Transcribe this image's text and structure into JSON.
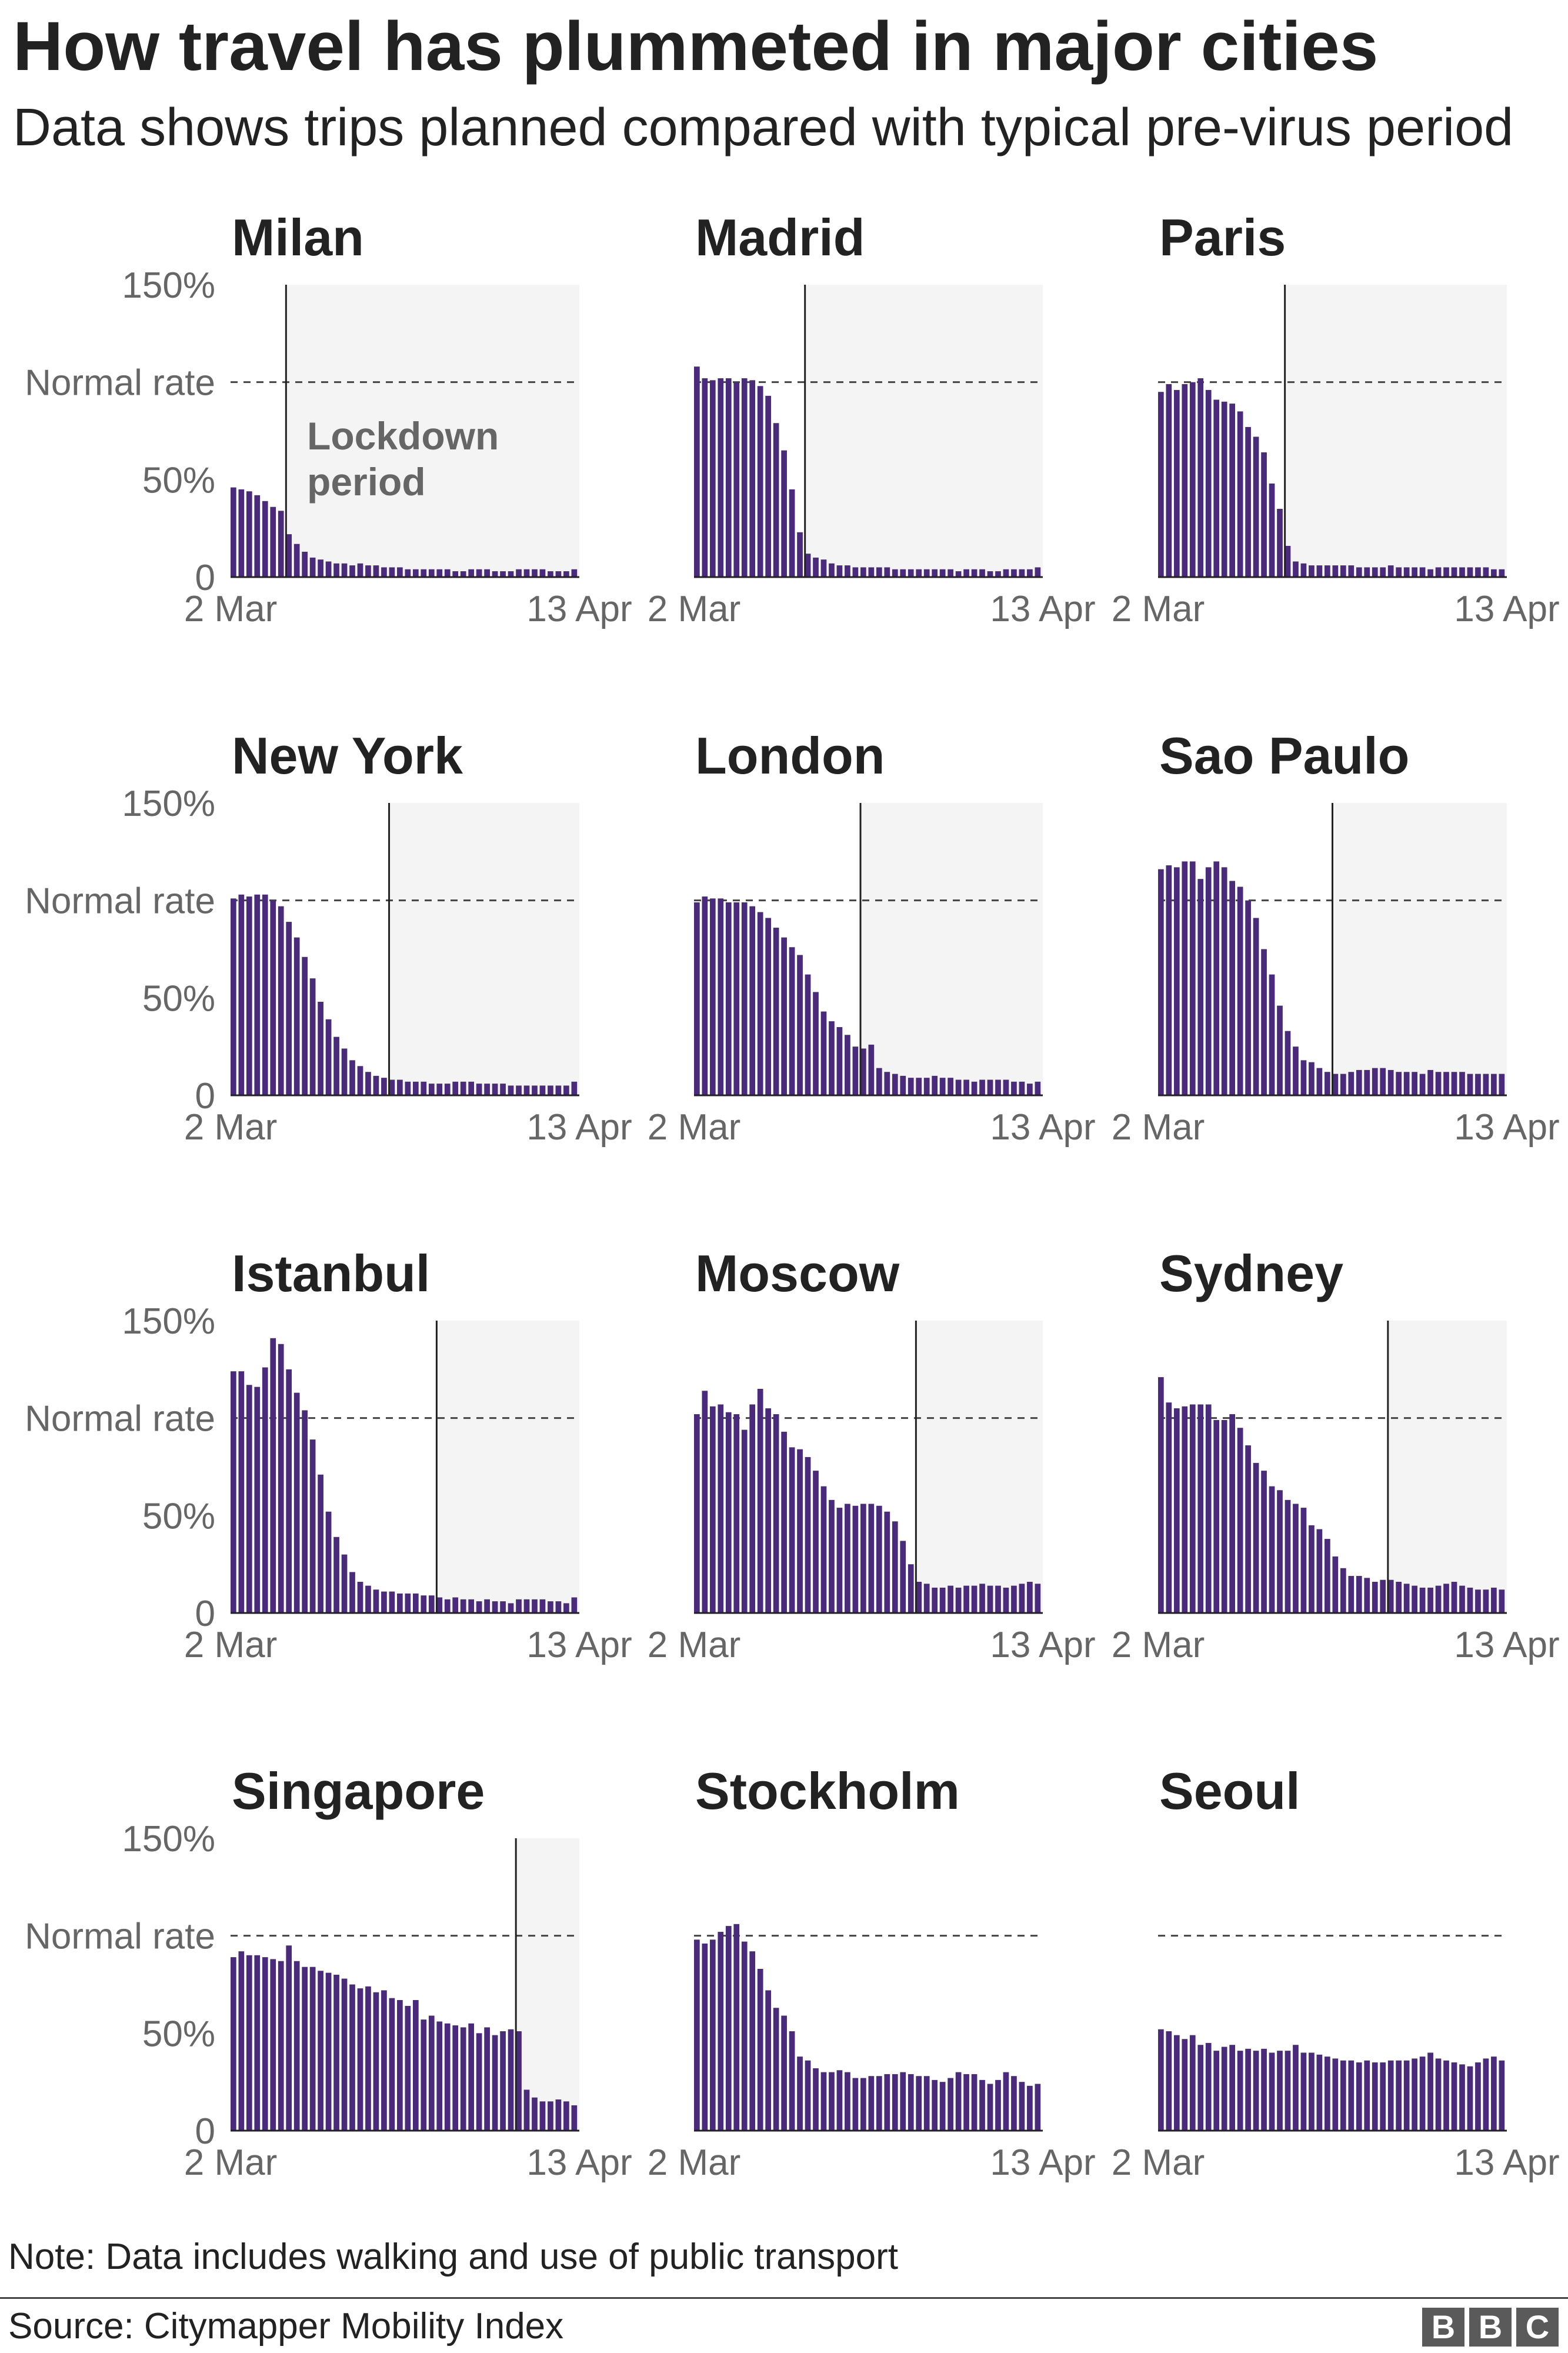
{
  "title": "How travel has plummeted in major cities",
  "subtitle": "Data shows trips planned compared with typical pre-virus period",
  "note": "Note: Data includes walking and use of public transport",
  "source": "Source: Citymapper Mobility Index",
  "logo": {
    "letters": [
      "B",
      "B",
      "C"
    ]
  },
  "colors": {
    "bar": "#4a2a7a",
    "lockdown_shade": "#f4f4f4",
    "axis": "#222222",
    "tick": "#666666",
    "annotation": "#666666"
  },
  "chart_data": {
    "type": "bar",
    "x_start_label": "2 Mar",
    "x_end_label": "13 Apr",
    "y_ticks": [
      {
        "value": 150,
        "label": "150%"
      },
      {
        "value": 100,
        "label": "Normal rate"
      },
      {
        "value": 50,
        "label": "50%"
      },
      {
        "value": 0,
        "label": "0"
      }
    ],
    "ylim": [
      0,
      150
    ],
    "reference_line": {
      "value": 100,
      "style": "dashed"
    },
    "annotation": {
      "chart": "Milan",
      "lines": [
        "Lockdown",
        "period"
      ]
    },
    "cities": [
      {
        "name": "Milan",
        "lockdown_day": 7,
        "values": [
          46,
          45,
          44,
          42,
          39,
          36,
          34,
          22,
          17,
          13,
          10,
          9,
          8,
          7,
          7,
          6,
          7,
          6,
          6,
          5,
          5,
          5,
          4,
          4,
          4,
          4,
          4,
          4,
          3,
          3,
          4,
          4,
          4,
          3,
          3,
          3,
          4,
          4,
          4,
          4,
          3,
          3,
          3,
          4
        ]
      },
      {
        "name": "Madrid",
        "lockdown_day": 14,
        "values": [
          108,
          102,
          101,
          102,
          102,
          100,
          102,
          101,
          98,
          93,
          79,
          65,
          45,
          23,
          12,
          10,
          9,
          7,
          6,
          6,
          5,
          5,
          5,
          5,
          5,
          4,
          4,
          4,
          4,
          4,
          4,
          4,
          4,
          3,
          4,
          4,
          4,
          3,
          3,
          4,
          4,
          4,
          4,
          5
        ]
      },
      {
        "name": "Paris",
        "lockdown_day": 16,
        "values": [
          95,
          99,
          96,
          99,
          100,
          102,
          96,
          91,
          90,
          89,
          85,
          77,
          72,
          64,
          48,
          35,
          16,
          8,
          7,
          6,
          6,
          6,
          6,
          6,
          6,
          5,
          5,
          5,
          5,
          6,
          5,
          5,
          5,
          5,
          4,
          5,
          5,
          5,
          5,
          5,
          5,
          5,
          4,
          4
        ]
      },
      {
        "name": "New York",
        "lockdown_day": 20,
        "values": [
          101,
          103,
          102,
          103,
          103,
          100,
          97,
          89,
          81,
          71,
          60,
          48,
          39,
          30,
          24,
          18,
          15,
          12,
          10,
          9,
          8,
          8,
          7,
          7,
          7,
          6,
          6,
          6,
          7,
          7,
          7,
          6,
          6,
          6,
          6,
          5,
          5,
          5,
          5,
          5,
          5,
          5,
          5,
          7
        ]
      },
      {
        "name": "London",
        "lockdown_day": 21,
        "values": [
          99,
          102,
          101,
          101,
          99,
          99,
          99,
          97,
          94,
          91,
          86,
          81,
          76,
          72,
          62,
          53,
          43,
          38,
          35,
          31,
          25,
          24,
          26,
          14,
          12,
          11,
          10,
          9,
          9,
          9,
          10,
          9,
          9,
          8,
          8,
          7,
          8,
          8,
          8,
          8,
          7,
          7,
          6,
          7
        ]
      },
      {
        "name": "Sao Paulo",
        "lockdown_day": 22,
        "values": [
          116,
          118,
          117,
          120,
          120,
          111,
          117,
          120,
          117,
          110,
          107,
          100,
          91,
          75,
          62,
          46,
          33,
          25,
          18,
          17,
          14,
          12,
          11,
          11,
          12,
          13,
          13,
          14,
          14,
          13,
          12,
          12,
          12,
          11,
          13,
          12,
          12,
          12,
          12,
          11,
          11,
          11,
          11,
          11
        ]
      },
      {
        "name": "Istanbul",
        "lockdown_day": 26,
        "values": [
          124,
          124,
          117,
          116,
          126,
          141,
          138,
          125,
          113,
          104,
          89,
          71,
          52,
          39,
          30,
          21,
          16,
          14,
          12,
          11,
          11,
          10,
          10,
          10,
          9,
          9,
          8,
          7,
          8,
          7,
          7,
          6,
          7,
          6,
          6,
          5,
          7,
          7,
          7,
          7,
          6,
          6,
          5,
          8
        ]
      },
      {
        "name": "Moscow",
        "lockdown_day": 28,
        "values": [
          102,
          114,
          106,
          107,
          103,
          102,
          94,
          107,
          115,
          105,
          102,
          93,
          85,
          84,
          80,
          73,
          65,
          58,
          54,
          56,
          55,
          56,
          56,
          55,
          52,
          47,
          37,
          25,
          16,
          15,
          13,
          13,
          14,
          13,
          14,
          14,
          15,
          14,
          14,
          13,
          14,
          15,
          16,
          15
        ]
      },
      {
        "name": "Sydney",
        "lockdown_day": 29,
        "values": [
          121,
          108,
          105,
          106,
          107,
          107,
          107,
          99,
          99,
          102,
          95,
          86,
          77,
          73,
          65,
          63,
          58,
          56,
          54,
          45,
          43,
          38,
          29,
          23,
          19,
          19,
          18,
          16,
          17,
          17,
          16,
          15,
          14,
          13,
          13,
          14,
          15,
          16,
          14,
          13,
          12,
          12,
          13,
          12
        ]
      },
      {
        "name": "Singapore",
        "lockdown_day": 36,
        "values": [
          89,
          92,
          90,
          90,
          89,
          88,
          87,
          95,
          87,
          84,
          84,
          82,
          81,
          80,
          78,
          75,
          73,
          74,
          71,
          72,
          68,
          67,
          64,
          67,
          57,
          59,
          56,
          55,
          54,
          53,
          55,
          50,
          53,
          49,
          51,
          52,
          51,
          21,
          17,
          15,
          15,
          16,
          15,
          13
        ]
      },
      {
        "name": "Stockholm",
        "lockdown_day": null,
        "values": [
          98,
          96,
          98,
          102,
          105,
          106,
          97,
          92,
          83,
          72,
          63,
          59,
          51,
          38,
          36,
          32,
          30,
          30,
          31,
          30,
          27,
          27,
          28,
          28,
          29,
          29,
          30,
          29,
          28,
          28,
          26,
          25,
          27,
          30,
          29,
          29,
          26,
          24,
          26,
          30,
          28,
          25,
          23,
          24
        ]
      },
      {
        "name": "Seoul",
        "lockdown_day": null,
        "values": [
          52,
          51,
          49,
          47,
          49,
          44,
          45,
          41,
          43,
          44,
          41,
          42,
          41,
          42,
          40,
          41,
          41,
          44,
          40,
          40,
          39,
          38,
          37,
          36,
          36,
          35,
          36,
          35,
          35,
          36,
          36,
          36,
          37,
          38,
          40,
          37,
          36,
          35,
          34,
          33,
          35,
          37,
          38,
          36
        ]
      }
    ]
  }
}
